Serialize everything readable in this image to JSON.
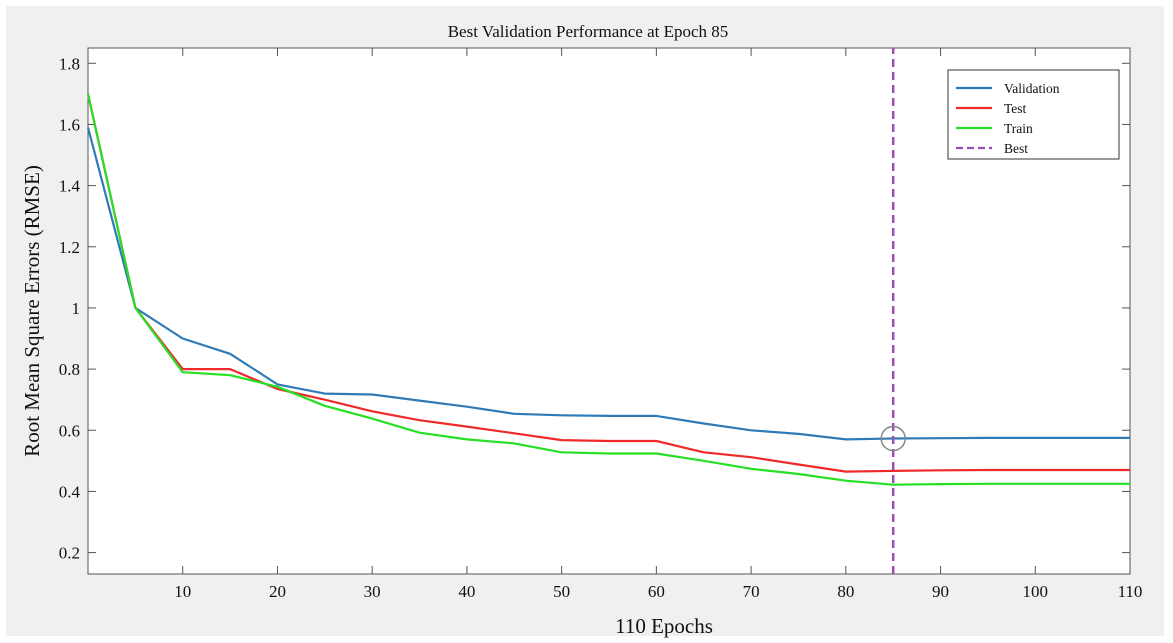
{
  "chart_data": {
    "type": "line",
    "title": "Best Validation Performance at Epoch 85",
    "xlabel": "110 Epochs",
    "ylabel": "Root Mean Square Errors (RMSE)",
    "xlim": [
      0,
      110
    ],
    "ylim": [
      0.13,
      1.85
    ],
    "xticks": [
      10,
      20,
      30,
      40,
      50,
      60,
      70,
      80,
      90,
      100,
      110
    ],
    "yticks": [
      0.2,
      0.4,
      0.6,
      0.8,
      1,
      1.2,
      1.4,
      1.6,
      1.8
    ],
    "ytick_labels": [
      "0.2",
      "0.4",
      "0.6",
      "0.8",
      "1",
      "1.2",
      "1.4",
      "1.6",
      "1.8"
    ],
    "grid": false,
    "legend_position": "top-right",
    "series": [
      {
        "name": "Validation",
        "color": "#2f7bb8",
        "x": [
          0,
          5,
          10,
          15,
          20,
          25,
          30,
          35,
          40,
          45,
          50,
          55,
          60,
          65,
          70,
          75,
          80,
          85,
          90,
          95,
          100,
          105,
          110
        ],
        "y": [
          1.59,
          1.0,
          0.9,
          0.85,
          0.75,
          0.72,
          0.717,
          0.697,
          0.677,
          0.654,
          0.649,
          0.647,
          0.647,
          0.622,
          0.6,
          0.588,
          0.57,
          0.573,
          0.574,
          0.575,
          0.575,
          0.575,
          0.575
        ]
      },
      {
        "name": "Test",
        "color": "#ee2a2a",
        "x": [
          0,
          5,
          10,
          15,
          20,
          25,
          30,
          35,
          40,
          45,
          50,
          55,
          60,
          65,
          70,
          75,
          80,
          85,
          90,
          95,
          100,
          105,
          110
        ],
        "y": [
          1.7,
          1.0,
          0.8,
          0.8,
          0.735,
          0.7,
          0.662,
          0.633,
          0.612,
          0.59,
          0.568,
          0.565,
          0.565,
          0.528,
          0.512,
          0.488,
          0.465,
          0.467,
          0.469,
          0.47,
          0.47,
          0.47,
          0.47
        ]
      },
      {
        "name": "Train",
        "color": "#25e025",
        "x": [
          0,
          5,
          10,
          15,
          20,
          25,
          30,
          35,
          40,
          45,
          50,
          55,
          60,
          65,
          70,
          75,
          80,
          85,
          90,
          95,
          100,
          105,
          110
        ],
        "y": [
          1.7,
          1.0,
          0.79,
          0.78,
          0.742,
          0.68,
          0.638,
          0.592,
          0.57,
          0.557,
          0.528,
          0.524,
          0.524,
          0.5,
          0.474,
          0.457,
          0.435,
          0.422,
          0.424,
          0.425,
          0.425,
          0.425,
          0.425
        ]
      },
      {
        "name": "Best",
        "color": "#9a4fb8",
        "dashed": true,
        "x": [
          85,
          85
        ],
        "y": [
          0.13,
          1.85
        ]
      }
    ],
    "best_point": {
      "x": 85,
      "y": 0.573
    }
  }
}
